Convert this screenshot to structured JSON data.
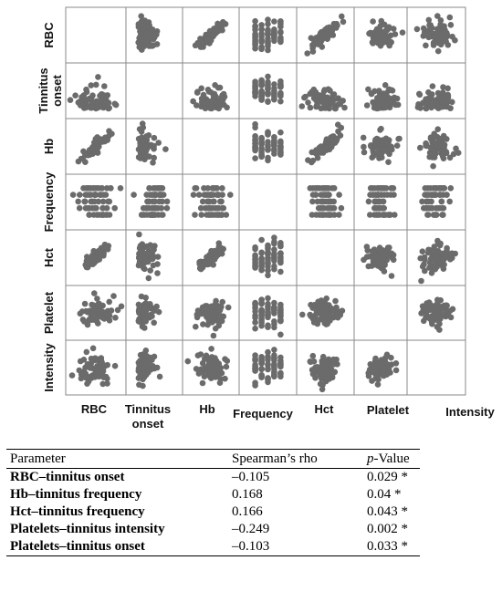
{
  "chart_data": {
    "type": "scatter",
    "variables": [
      "RBC",
      "Tinnitus onset",
      "Hb",
      "Frequency",
      "Hct",
      "Platelet",
      "Intensity"
    ],
    "row_labels": [
      "RBC",
      "Tinnitus\nonset",
      "Hb",
      "Frequency",
      "Hct",
      "Platelet",
      "Intensity"
    ],
    "col_labels": [
      "RBC",
      "Tinnitus\nonset",
      "Hb",
      "Frequency",
      "Hct",
      "Platelet",
      "Intensity"
    ],
    "lower_triangle_only_below_row": 6,
    "grid": true,
    "point_color": "#6b6b6b",
    "border_color": "#8a8a8a"
  },
  "table": {
    "headers": [
      "Parameter",
      "Spearman’s rho",
      "p",
      "-Value"
    ],
    "rows": [
      {
        "param": "RBC–tinnitus onset",
        "rho": "–0.105",
        "p": "0.029 *"
      },
      {
        "param": "Hb–tinnitus frequency",
        "rho": "0.168",
        "p": "0.04 *"
      },
      {
        "param": "Hct–tinnitus frequency",
        "rho": "0.166",
        "p": "0.043 *"
      },
      {
        "param": "Platelets–tinnitus intensity",
        "rho": "–0.249",
        "p": "0.002 *"
      },
      {
        "param": "Platelets–tinnitus onset",
        "rho": "–0.103",
        "p": "0.033 *"
      }
    ]
  }
}
